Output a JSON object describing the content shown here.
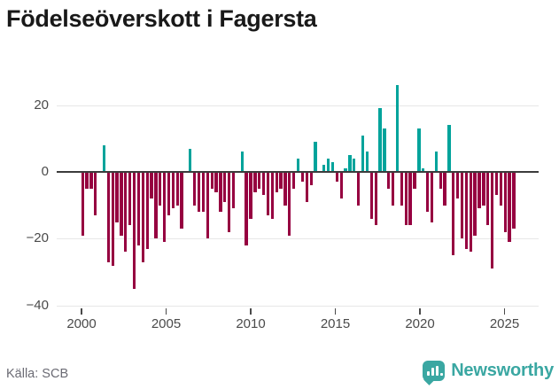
{
  "title": "Födelseöverskott i Fagersta",
  "source": "Källa: SCB",
  "branding": {
    "wordmark": "Newsworthy",
    "logo_icon": "bar-chart-speech-bubble-icon",
    "brand_color": "#3aa7a2"
  },
  "colors": {
    "positive_bar": "#00a39b",
    "negative_bar": "#960040",
    "zero_line": "#3c3c3c",
    "gridline": "#e7e7e7",
    "title_text": "#191919",
    "axis_text": "#4a4a4a",
    "source_text": "#6b6b74"
  },
  "chart_data": {
    "type": "bar",
    "title": "Födelseöverskott i Fagersta",
    "x_axis": {
      "start_year": 2000,
      "start_quarter": 1,
      "frequency": "quarterly",
      "tick_labels": [
        "2000",
        "2005",
        "2010",
        "2015",
        "2020",
        "2025"
      ],
      "tick_years": [
        2000,
        2005,
        2010,
        2015,
        2020,
        2025
      ]
    },
    "values": [
      -19,
      -5,
      -5,
      -13,
      0,
      8,
      -27,
      -28,
      -15,
      -19,
      -24,
      -16,
      -35,
      -22,
      -27,
      -23,
      -8,
      -20,
      -10,
      -21,
      -13,
      -11,
      -10,
      -17,
      0,
      7,
      -10,
      -12,
      -12,
      -20,
      -5,
      -6,
      -12,
      -9,
      -18,
      -11,
      0,
      6,
      -22,
      -14,
      -6,
      -5,
      -7,
      -13,
      -14,
      -6,
      -5,
      -10,
      -19,
      -5,
      4,
      -3,
      -9,
      -4,
      9,
      0,
      2,
      4,
      3,
      -3,
      -8,
      1,
      5,
      4,
      -10,
      11,
      6,
      -14,
      -16,
      19,
      13,
      -5,
      -10,
      26,
      -10,
      -16,
      -16,
      -5,
      13,
      1,
      -12,
      -15,
      6,
      -5,
      -10,
      14,
      -25,
      -8,
      -20,
      -23,
      -24,
      -19,
      -11,
      -10,
      -16,
      -29,
      -7,
      -10,
      -18,
      -21,
      -17
    ],
    "yticks": [
      20,
      0,
      -20,
      -40
    ],
    "ylim": [
      -42,
      29
    ],
    "grid": "horizontal",
    "legend": "none",
    "positive_color": "#00a39b",
    "negative_color": "#960040"
  }
}
